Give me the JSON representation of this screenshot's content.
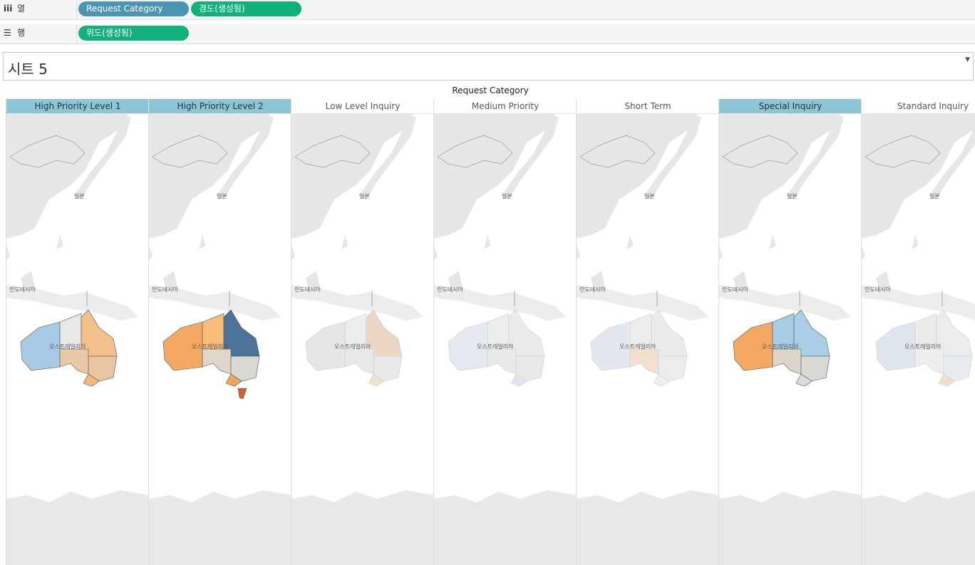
{
  "shelves": {
    "columns": {
      "icon": "iii",
      "label": "열",
      "pills": [
        "Request Category",
        "경도(생성됨)"
      ]
    },
    "rows": {
      "icon": "☰",
      "label": "행",
      "pills": [
        "위도(생성됨)"
      ]
    }
  },
  "sheet": {
    "title": "시트 5"
  },
  "view": {
    "header_title": "Request Category",
    "columns": [
      {
        "name": "High Priority Level 1",
        "highlighted": true
      },
      {
        "name": "High Priority Level 2",
        "highlighted": true
      },
      {
        "name": "Low Level Inquiry",
        "highlighted": false
      },
      {
        "name": "Medium Priority",
        "highlighted": false
      },
      {
        "name": "Short Term",
        "highlighted": false
      },
      {
        "name": "Special Inquiry",
        "highlighted": true
      },
      {
        "name": "Standard Inquiry",
        "highlighted": false
      }
    ],
    "map_labels": {
      "japan": "일본",
      "indonesia": "인도네시아",
      "australia": "오스트레일리아"
    }
  },
  "colors": {
    "pill_blue": "#4a96b2",
    "pill_green": "#10b27a",
    "header_highlight": "#8ec5d6"
  }
}
